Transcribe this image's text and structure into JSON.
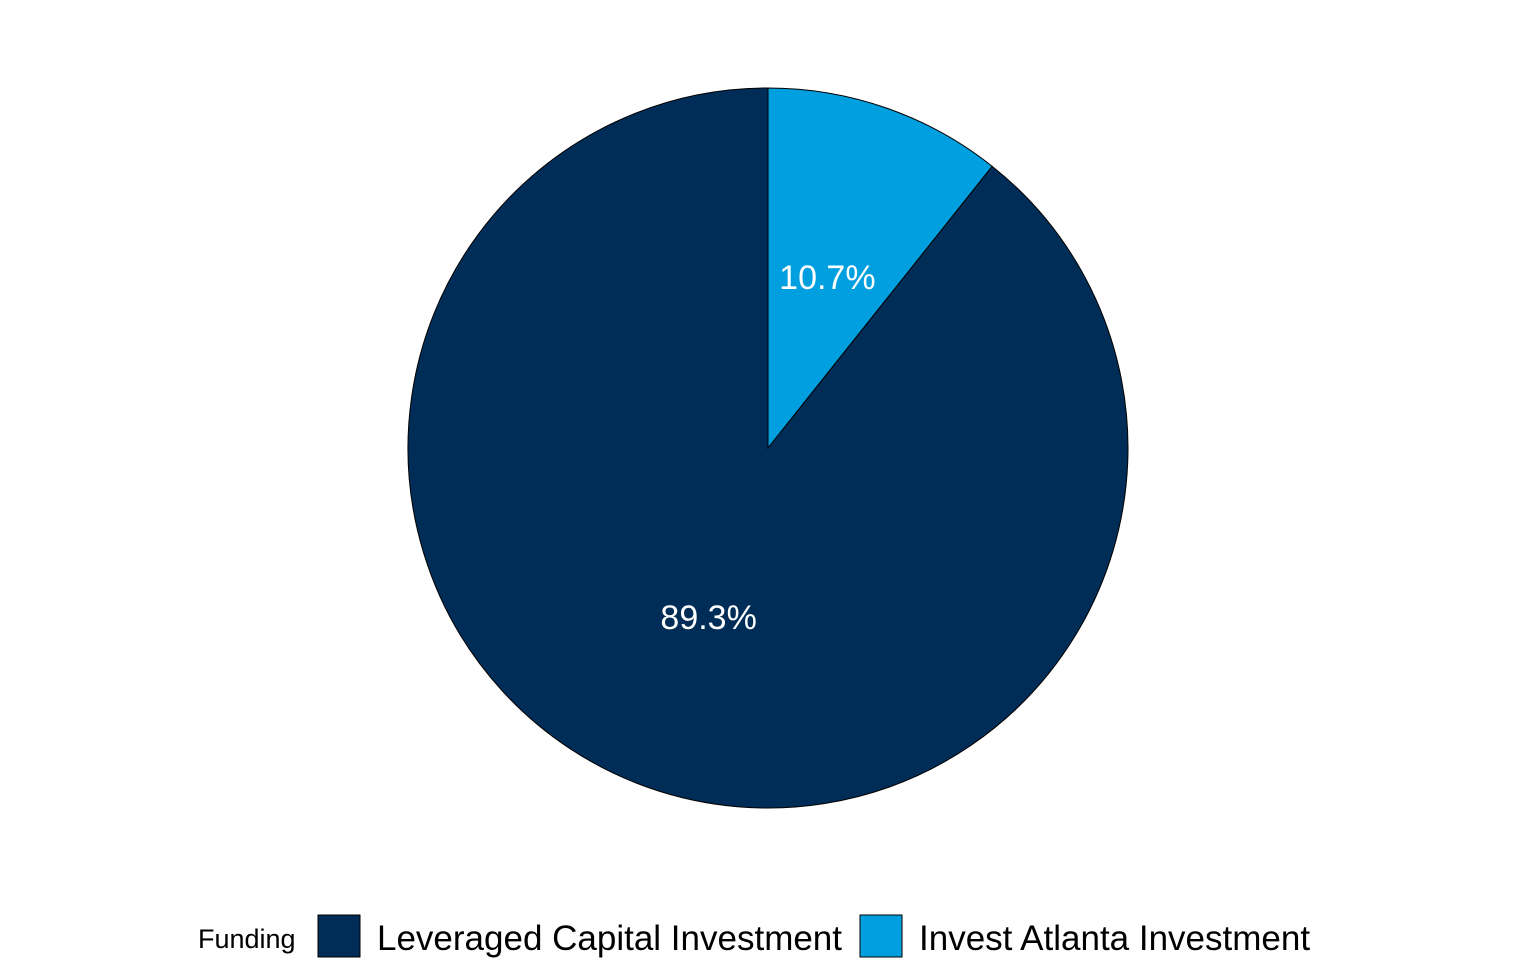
{
  "chart_data": {
    "type": "pie",
    "title": "",
    "start": "12-o'clock",
    "direction": "clockwise",
    "legend": {
      "title": "Funding",
      "placement": "bottom"
    },
    "slices": [
      {
        "name": "Invest Atlanta Investment",
        "value": 10.7,
        "label": "10.7%",
        "color": "#009FDF"
      },
      {
        "name": "Leveraged Capital Investment",
        "value": 89.3,
        "label": "89.3%",
        "color": "#002D57"
      }
    ],
    "legend_order": [
      "Leveraged Capital Investment",
      "Invest Atlanta Investment"
    ]
  }
}
